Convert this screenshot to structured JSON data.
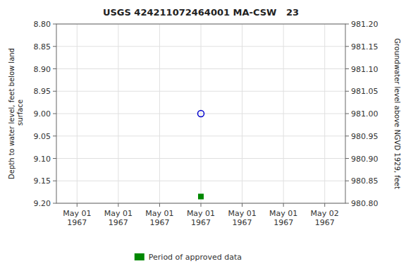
{
  "chart_data": {
    "type": "scatter",
    "title": "USGS 424211072464001 MA-CSW   23",
    "ylabel": "Depth to water level, feet below land\n surface",
    "y2label": "Groundwater level above NGVD 1929, feet",
    "categories": [
      "May 01\n1967",
      "May 01\n1967",
      "May 01\n1967",
      "May 01\n1967",
      "May 01\n1967",
      "May 01\n1967",
      "May 02\n1967"
    ],
    "ylim": [
      9.2,
      8.8
    ],
    "yticks": [
      {
        "value": 8.8,
        "label": "8.80"
      },
      8.85,
      {
        "value": 8.9,
        "label": "8.90"
      },
      8.95,
      {
        "value": 9.0,
        "label": "9.00"
      },
      9.05,
      {
        "value": 9.1,
        "label": "9.10"
      },
      9.15,
      {
        "value": 9.2,
        "label": "9.20"
      }
    ],
    "y2lim": [
      980.8,
      981.2
    ],
    "y2ticks": [
      {
        "value": 981.2,
        "label": "981.20"
      },
      981.15,
      {
        "value": 981.1,
        "label": "981.10"
      },
      981.05,
      {
        "value": 981.0,
        "label": "981.00"
      },
      980.95,
      {
        "value": 980.9,
        "label": "980.90"
      },
      980.85,
      {
        "value": 980.8,
        "label": "980.80"
      }
    ],
    "grid": true,
    "legend": "bottom",
    "series": [
      {
        "values": [
          null,
          null,
          null,
          9.0,
          null,
          null,
          null
        ],
        "color": "#0000cc",
        "marker": "circle-open"
      },
      {
        "name": "Period of approved data",
        "values": [
          null,
          null,
          null,
          9.185,
          null,
          null,
          null
        ],
        "color": "#008800",
        "marker": "square"
      }
    ]
  }
}
